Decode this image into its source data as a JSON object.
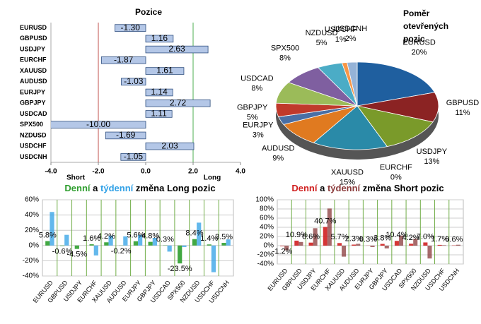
{
  "chart_data": [
    {
      "type": "bar",
      "orientation": "horizontal",
      "title": "Pozice",
      "categories": [
        "EURUSD",
        "GBPUSD",
        "USDJPY",
        "EURCHF",
        "XAUUSD",
        "AUDUSD",
        "EURJPY",
        "GBPJPY",
        "USDCAD",
        "SPX500",
        "NZDUSD",
        "USDCHF",
        "USDCNH"
      ],
      "values": [
        -1.3,
        1.16,
        2.63,
        -1.87,
        1.61,
        -1.03,
        1.14,
        2.72,
        1.11,
        -10,
        -1.69,
        2.03,
        -1.05
      ],
      "value_labels": [
        "-1.30",
        "1.16",
        "2.63",
        "-1.87",
        "1.61",
        "-1.03",
        "1.14",
        "2.72",
        "1.11",
        "-10.00",
        "-1.69",
        "2.03",
        "-1.05"
      ],
      "color": "#b4c7e7",
      "xlim": [
        -4,
        4
      ],
      "xticks": [
        {
          "value": -4,
          "label": "-4.0"
        },
        {
          "value": -2,
          "label": "-2.0"
        },
        {
          "value": 0,
          "label": "0.0"
        },
        {
          "value": 2,
          "label": "2.0"
        },
        {
          "value": 4,
          "label": "4.0"
        }
      ],
      "reference_lines": [
        {
          "value": -2,
          "color": "#c0504d"
        },
        {
          "value": 2,
          "color": "#4caf50"
        }
      ],
      "short_label": "Short",
      "long_label": "Long"
    },
    {
      "type": "pie",
      "title": "Poměr otevřených pozic",
      "categories": [
        "EURUSD",
        "GBPUSD",
        "USDJPY",
        "EURCHF",
        "XAUUSD",
        "AUDUSD",
        "EURJPY",
        "GBPJPY",
        "USDCAD",
        "SPX500",
        "NZDUSD",
        "USDCHF",
        "USDCNH"
      ],
      "values": [
        20,
        11,
        13,
        0,
        15,
        9,
        3,
        5,
        8,
        8,
        5,
        1,
        2
      ],
      "value_labels": [
        "20%",
        "11%",
        "13%",
        "0%",
        "15%",
        "9%",
        "3%",
        "5%",
        "8%",
        "8%",
        "5%",
        "1%",
        "2%"
      ],
      "colors": [
        "#1f5f9f",
        "#8b2323",
        "#7a9a2a",
        "#5b3a8a",
        "#2a8aa8",
        "#e07a20",
        "#4a6fa5",
        "#c0392b",
        "#9bbb59",
        "#7f5fa0",
        "#4bacc6",
        "#f79646",
        "#95b3d7"
      ]
    },
    {
      "type": "bar",
      "title_joiner": "a",
      "title_rest": "změna Long pozic",
      "categories": [
        "EURUSD",
        "GBPUSD",
        "USDJPY",
        "EURCHF",
        "XAUUSD",
        "AUDUSD",
        "EURJPY",
        "GBPJPY",
        "USDCAD",
        "SPX500",
        "NZDUSD",
        "USDCHF",
        "USDCNH"
      ],
      "series": [
        {
          "name": "Denní",
          "color": "#2e9e2e",
          "values": [
            5.8,
            -0.6,
            -4.5,
            1.6,
            4.2,
            -0.2,
            5.6,
            4.8,
            0.3,
            -23.5,
            8.4,
            1.4,
            3.5
          ],
          "value_labels": [
            "5.8%",
            "-0.6%",
            "-4.5%",
            "1.6%",
            "4.2%",
            "-0.2%",
            "5.6%",
            "4.8%",
            "0.3%",
            "-23.5%",
            "8.4%",
            "1.4%",
            "3.5%"
          ]
        },
        {
          "name": "týdenní",
          "color": "#2fa0e6",
          "values": [
            44,
            14,
            0,
            -13,
            13,
            12,
            14,
            10,
            -8,
            -2,
            30,
            -35,
            8
          ]
        }
      ],
      "ylim": [
        -40,
        60
      ],
      "yticks": [
        {
          "value": -40,
          "label": "-40%"
        },
        {
          "value": -20,
          "label": "-20%"
        },
        {
          "value": 0,
          "label": "0%"
        },
        {
          "value": 20,
          "label": "20%"
        },
        {
          "value": 40,
          "label": "40%"
        },
        {
          "value": 60,
          "label": "60%"
        }
      ],
      "grid": true,
      "divider_color": "#70ad47"
    },
    {
      "type": "bar",
      "title_joiner": "a",
      "title_rest": "změna Short pozic",
      "categories": [
        "EURUSD",
        "GBPUSD",
        "USDJPY",
        "EURCHF",
        "XAUUSD",
        "AUDUSD",
        "EURJPY",
        "GBPJPY",
        "USDCAD",
        "SPX500",
        "NZDUSD",
        "USDCHF",
        "USDCNH"
      ],
      "series": [
        {
          "name": "Denní",
          "color": "#d02020",
          "values": [
            -1.2,
            10.9,
            6.6,
            40.7,
            5.7,
            2.3,
            0.3,
            3.8,
            10.4,
            4.2,
            7.0,
            1.7,
            0.6
          ],
          "value_labels": [
            "-1.2%",
            "10.9%",
            "6.6%",
            "40.7%",
            "5.7%",
            "2.3%",
            "0.3%",
            "3.8%",
            "10.4%",
            "4.2%",
            "7.0%",
            "1.7%",
            "0.6%"
          ]
        },
        {
          "name": "týdenní",
          "color": "#8a3a3a",
          "values": [
            -10,
            8,
            38,
            81,
            -24,
            4,
            -3,
            -6,
            22,
            15,
            -28,
            1,
            2
          ]
        }
      ],
      "ylim": [
        -40,
        100
      ],
      "yticks": [
        {
          "value": -40,
          "label": "-40%"
        },
        {
          "value": -20,
          "label": "-20%"
        },
        {
          "value": 0,
          "label": "0%"
        },
        {
          "value": 20,
          "label": "20%"
        },
        {
          "value": 40,
          "label": "40%"
        },
        {
          "value": 60,
          "label": "60%"
        },
        {
          "value": 80,
          "label": "80%"
        },
        {
          "value": 100,
          "label": "100%"
        }
      ],
      "grid": true,
      "divider_color": "#70ad47"
    }
  ]
}
